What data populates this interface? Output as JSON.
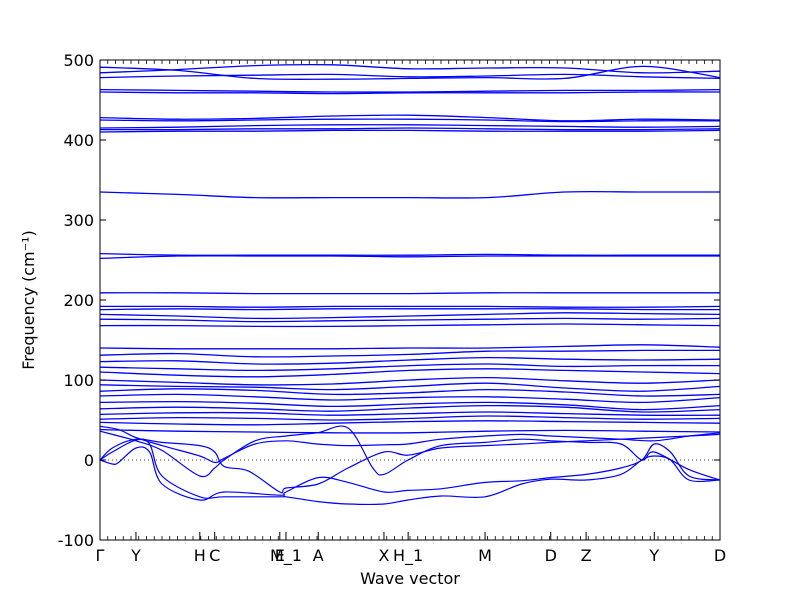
{
  "chart_data": {
    "type": "line",
    "title": "",
    "xlabel": "Wave vector",
    "ylabel": "Frequency (cm⁻¹)",
    "ylim": [
      -100,
      500
    ],
    "yticks": [
      -100,
      0,
      100,
      200,
      300,
      400,
      500
    ],
    "high_symmetry_points": [
      {
        "label": "Γ",
        "x": 0.0
      },
      {
        "label": "Y",
        "x": 0.058
      },
      {
        "label": "H",
        "x": 0.161
      },
      {
        "label": "C",
        "x": 0.185
      },
      {
        "label": "E",
        "x": 0.29
      },
      {
        "label": "M_1",
        "x": 0.3
      },
      {
        "label": "A",
        "x": 0.352
      },
      {
        "label": "X",
        "x": 0.458
      },
      {
        "label": "H_1",
        "x": 0.497
      },
      {
        "label": "M",
        "x": 0.621
      },
      {
        "label": "D",
        "x": 0.727
      },
      {
        "label": "Z",
        "x": 0.784
      },
      {
        "label": "Y",
        "x": 0.894
      },
      {
        "label": "D",
        "x": 1.0
      }
    ],
    "zero_line": {
      "y": 0,
      "style": "dotted"
    },
    "line_color": "#0000ff",
    "flat_bands": [
      {
        "name": "band-491",
        "y": [
          484,
          488,
          493,
          494,
          489,
          490,
          490,
          484,
          486
        ]
      },
      {
        "name": "band-485",
        "y": [
          491,
          487,
          477,
          476,
          477,
          478,
          477,
          492,
          478
        ]
      },
      {
        "name": "band-480",
        "y": [
          478,
          480,
          481,
          482,
          479,
          480,
          482,
          479,
          477
        ]
      },
      {
        "name": "band-462",
        "y": [
          463,
          462,
          461,
          460,
          460,
          461,
          462,
          462,
          463
        ]
      },
      {
        "name": "band-459",
        "y": [
          460,
          459,
          459,
          458,
          459,
          459,
          459,
          460,
          460
        ]
      },
      {
        "name": "band-427",
        "y": [
          428,
          426,
          427,
          430,
          431,
          428,
          424,
          426,
          425
        ]
      },
      {
        "name": "band-424",
        "y": [
          425,
          424,
          425,
          426,
          426,
          425,
          423,
          424,
          424
        ]
      },
      {
        "name": "band-416",
        "y": [
          415,
          416,
          418,
          419,
          419,
          418,
          417,
          416,
          417
        ]
      },
      {
        "name": "band-413",
        "y": [
          413,
          413,
          414,
          414,
          415,
          414,
          413,
          413,
          414
        ]
      },
      {
        "name": "band-410",
        "y": [
          410,
          411,
          411,
          412,
          412,
          411,
          411,
          411,
          412
        ]
      },
      {
        "name": "band-335",
        "y": [
          335,
          332,
          328,
          328,
          328,
          328,
          335,
          335,
          335
        ]
      },
      {
        "name": "band-258",
        "y": [
          258,
          256,
          256,
          256,
          256,
          257,
          256,
          256,
          256
        ]
      },
      {
        "name": "band-253",
        "y": [
          252,
          255,
          255,
          255,
          254,
          255,
          255,
          255,
          255
        ]
      },
      {
        "name": "band-209",
        "y": [
          209,
          209,
          208,
          208,
          208,
          209,
          209,
          209,
          209
        ]
      },
      {
        "name": "band-191",
        "y": [
          192,
          192,
          191,
          192,
          192,
          192,
          191,
          191,
          192
        ]
      },
      {
        "name": "band-188",
        "y": [
          188,
          189,
          188,
          189,
          189,
          189,
          189,
          188,
          188
        ]
      },
      {
        "name": "band-181",
        "y": [
          182,
          180,
          177,
          178,
          180,
          182,
          184,
          183,
          182
        ]
      },
      {
        "name": "band-175",
        "y": [
          176,
          175,
          173,
          174,
          175,
          176,
          177,
          176,
          177
        ]
      },
      {
        "name": "band-168",
        "y": [
          168,
          168,
          167,
          167,
          168,
          169,
          170,
          169,
          168
        ]
      },
      {
        "name": "band-140",
        "y": [
          140,
          139,
          139,
          139,
          140,
          140,
          142,
          144,
          141
        ]
      },
      {
        "name": "band-131",
        "y": [
          131,
          133,
          129,
          130,
          132,
          136,
          136,
          137,
          137
        ]
      },
      {
        "name": "band-122",
        "y": [
          123,
          124,
          120,
          121,
          125,
          128,
          126,
          125,
          126
        ]
      },
      {
        "name": "band-116",
        "y": [
          116,
          114,
          112,
          114,
          118,
          120,
          117,
          118,
          118
        ]
      },
      {
        "name": "band-110",
        "y": [
          110,
          106,
          104,
          107,
          112,
          114,
          112,
          110,
          108
        ]
      },
      {
        "name": "band-100",
        "y": [
          100,
          97,
          94,
          95,
          100,
          103,
          99,
          96,
          100
        ]
      },
      {
        "name": "band-94",
        "y": [
          94,
          92,
          91,
          88,
          92,
          96,
          90,
          86,
          92
        ]
      },
      {
        "name": "band-86",
        "y": [
          86,
          89,
          87,
          82,
          84,
          88,
          85,
          80,
          82
        ]
      },
      {
        "name": "band-80",
        "y": [
          80,
          82,
          79,
          75,
          78,
          79,
          76,
          72,
          78
        ]
      },
      {
        "name": "band-72",
        "y": [
          72,
          73,
          71,
          67,
          70,
          72,
          69,
          63,
          68
        ]
      },
      {
        "name": "band-64",
        "y": [
          64,
          66,
          64,
          61,
          65,
          68,
          66,
          60,
          63
        ]
      },
      {
        "name": "band-57",
        "y": [
          57,
          59,
          59,
          56,
          58,
          60,
          58,
          56,
          56
        ]
      },
      {
        "name": "band-52",
        "y": [
          51,
          53,
          52,
          50,
          52,
          55,
          53,
          51,
          52
        ]
      },
      {
        "name": "band-47",
        "y": [
          47,
          45,
          44,
          46,
          48,
          49,
          48,
          47,
          46
        ]
      },
      {
        "name": "band-36",
        "y": [
          38,
          36,
          35,
          34,
          34,
          36,
          37,
          36,
          35
        ]
      }
    ],
    "dispersive_bands": [
      {
        "name": "low-a",
        "points": [
          [
            0.0,
            42
          ],
          [
            0.03,
            38
          ],
          [
            0.058,
            28
          ],
          [
            0.1,
            18
          ],
          [
            0.161,
            5
          ],
          [
            0.185,
            -3
          ],
          [
            0.2,
            2
          ],
          [
            0.25,
            20
          ],
          [
            0.3,
            24
          ],
          [
            0.35,
            20
          ],
          [
            0.4,
            18
          ],
          [
            0.458,
            19
          ],
          [
            0.497,
            20
          ],
          [
            0.55,
            26
          ],
          [
            0.621,
            30
          ],
          [
            0.68,
            32
          ],
          [
            0.727,
            30
          ],
          [
            0.784,
            28
          ],
          [
            0.84,
            26
          ],
          [
            0.894,
            24
          ],
          [
            0.95,
            30
          ],
          [
            1.0,
            34
          ]
        ]
      },
      {
        "name": "low-b",
        "points": [
          [
            0.0,
            36
          ],
          [
            0.03,
            30
          ],
          [
            0.058,
            24
          ],
          [
            0.1,
            12
          ],
          [
            0.161,
            -20
          ],
          [
            0.185,
            -10
          ],
          [
            0.2,
            0
          ],
          [
            0.25,
            24
          ],
          [
            0.3,
            30
          ],
          [
            0.35,
            34
          ],
          [
            0.4,
            40
          ],
          [
            0.44,
            -10
          ],
          [
            0.458,
            -18
          ],
          [
            0.497,
            0
          ],
          [
            0.55,
            18
          ],
          [
            0.621,
            22
          ],
          [
            0.68,
            26
          ],
          [
            0.727,
            24
          ],
          [
            0.784,
            22
          ],
          [
            0.84,
            20
          ],
          [
            0.874,
            0
          ],
          [
            0.894,
            10
          ],
          [
            0.95,
            -12
          ],
          [
            1.0,
            -25
          ]
        ]
      },
      {
        "name": "acoustic-1",
        "points": [
          [
            0.0,
            0
          ],
          [
            0.02,
            -5
          ],
          [
            0.03,
            -3
          ],
          [
            0.058,
            15
          ],
          [
            0.08,
            10
          ],
          [
            0.1,
            -30
          ],
          [
            0.161,
            -50
          ],
          [
            0.2,
            -40
          ],
          [
            0.29,
            -44
          ],
          [
            0.3,
            -40
          ],
          [
            0.352,
            -22
          ],
          [
            0.4,
            -28
          ],
          [
            0.458,
            -40
          ],
          [
            0.497,
            -38
          ],
          [
            0.55,
            -36
          ],
          [
            0.621,
            -28
          ],
          [
            0.68,
            -26
          ],
          [
            0.727,
            -22
          ],
          [
            0.784,
            -18
          ],
          [
            0.84,
            -10
          ],
          [
            0.874,
            0
          ],
          [
            0.894,
            20
          ],
          [
            0.92,
            10
          ],
          [
            0.95,
            -20
          ],
          [
            1.0,
            -25
          ]
        ]
      },
      {
        "name": "acoustic-2",
        "points": [
          [
            0.0,
            0
          ],
          [
            0.02,
            10
          ],
          [
            0.058,
            25
          ],
          [
            0.08,
            20
          ],
          [
            0.1,
            -20
          ],
          [
            0.161,
            -46
          ],
          [
            0.2,
            -46
          ],
          [
            0.29,
            -46
          ],
          [
            0.3,
            -46
          ],
          [
            0.352,
            -52
          ],
          [
            0.4,
            -55
          ],
          [
            0.458,
            -55
          ],
          [
            0.497,
            -50
          ],
          [
            0.55,
            -45
          ],
          [
            0.621,
            -46
          ],
          [
            0.68,
            -30
          ],
          [
            0.727,
            -24
          ],
          [
            0.784,
            -25
          ],
          [
            0.84,
            -18
          ],
          [
            0.874,
            0
          ],
          [
            0.894,
            5
          ],
          [
            0.92,
            0
          ],
          [
            0.95,
            -25
          ],
          [
            1.0,
            -25
          ]
        ]
      },
      {
        "name": "acoustic-3",
        "points": [
          [
            0.0,
            0
          ],
          [
            0.02,
            15
          ],
          [
            0.058,
            26
          ],
          [
            0.1,
            22
          ],
          [
            0.161,
            18
          ],
          [
            0.185,
            10
          ],
          [
            0.2,
            -8
          ],
          [
            0.24,
            -14
          ],
          [
            0.29,
            -40
          ],
          [
            0.3,
            -35
          ],
          [
            0.352,
            -30
          ],
          [
            0.4,
            -10
          ],
          [
            0.458,
            10
          ],
          [
            0.497,
            6
          ],
          [
            0.55,
            15
          ],
          [
            0.621,
            18
          ],
          [
            0.68,
            20
          ],
          [
            0.727,
            22
          ],
          [
            0.784,
            24
          ],
          [
            0.84,
            26
          ],
          [
            0.894,
            28
          ],
          [
            0.95,
            30
          ],
          [
            1.0,
            32
          ]
        ]
      }
    ]
  }
}
